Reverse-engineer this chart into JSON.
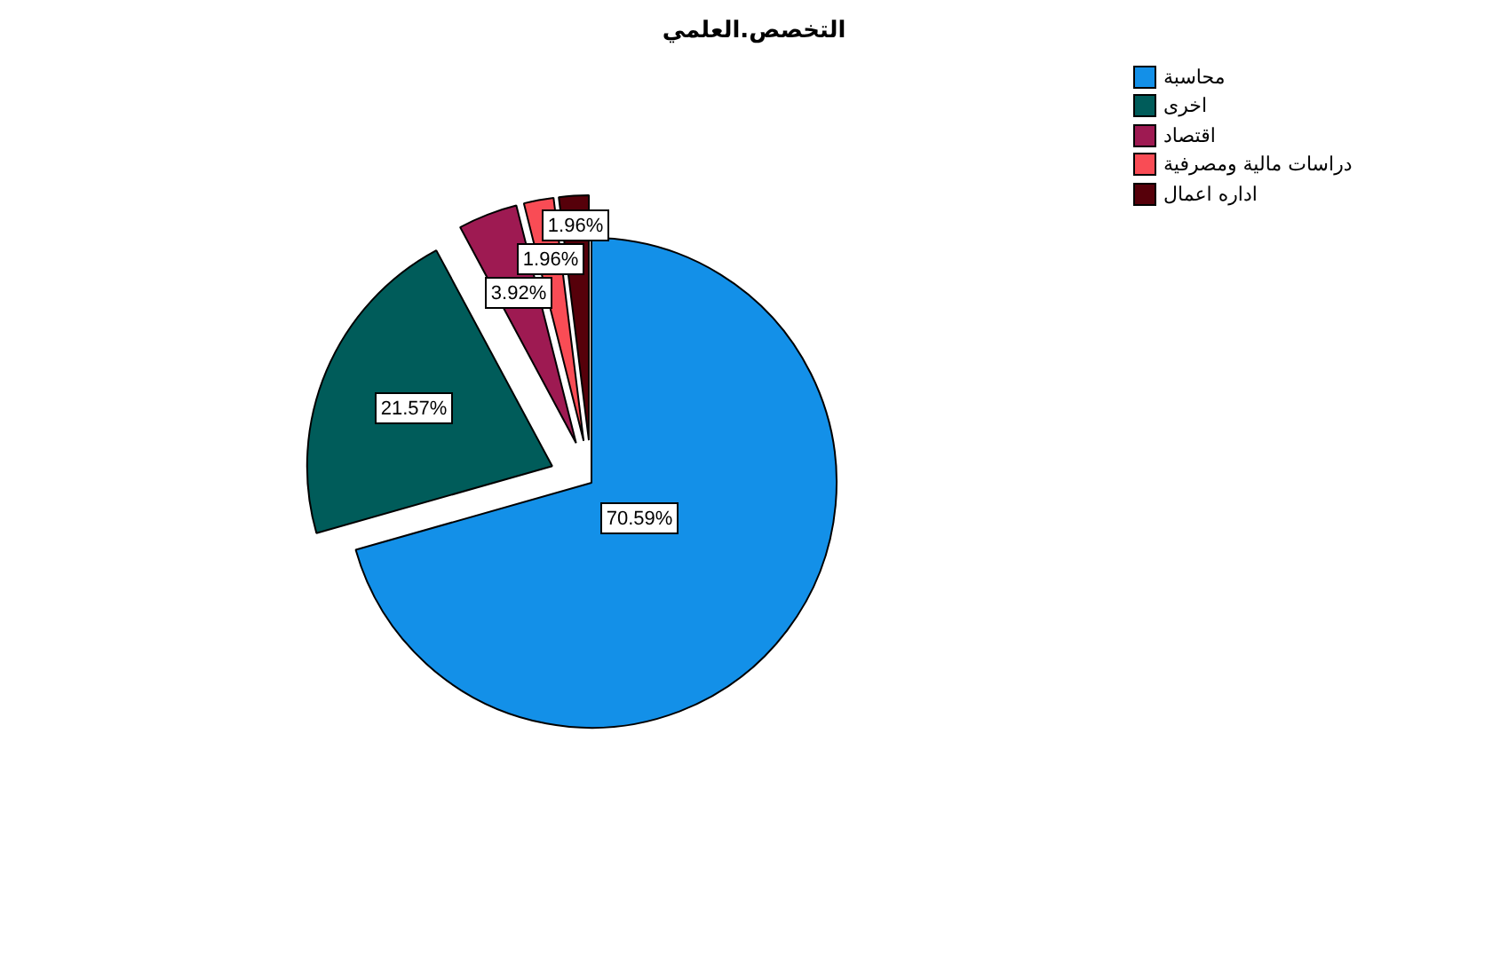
{
  "chart_data": {
    "type": "pie",
    "title": "التخصص.العلمي",
    "categories": [
      "محاسبة",
      "اخرى",
      "اقتصاد",
      "دراسات مالية ومصرفية",
      "اداره اعمال"
    ],
    "values": [
      70.59,
      21.57,
      3.92,
      1.96,
      1.96
    ],
    "colors": [
      "#1390e8",
      "#005c5a",
      "#9e1a52",
      "#f94c55",
      "#56000a"
    ],
    "value_labels": [
      "70.59%",
      "21.57%",
      "3.92%",
      "1.96%",
      "1.96%"
    ],
    "legend": "top right"
  }
}
